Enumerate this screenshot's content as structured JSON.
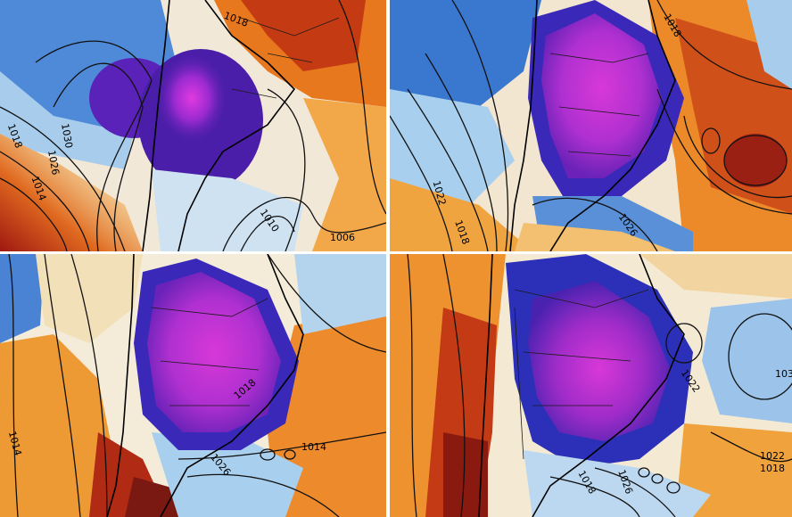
{
  "colors": {
    "cold_core": "#e03ae0",
    "cold": "#6a1fb0",
    "cool": "#2050c8",
    "mild": "#9cc8ec",
    "neutral": "#f4f1ea",
    "warm": "#f0a030",
    "hot": "#d85010",
    "very_hot": "#8a1a10"
  },
  "panels": [
    {
      "name": "panel-top-left",
      "isobar_labels": [
        "1018",
        "1030",
        "1026",
        "1014",
        "1018",
        "1010",
        "1006"
      ]
    },
    {
      "name": "panel-top-right",
      "isobar_labels": [
        "1022",
        "1018",
        "1026",
        "1018"
      ]
    },
    {
      "name": "panel-bottom-left",
      "isobar_labels": [
        "1014",
        "1014",
        "1026",
        "1018"
      ]
    },
    {
      "name": "panel-bottom-right",
      "isobar_labels": [
        "1022",
        "1026",
        "1018",
        "1022",
        "1018",
        "103"
      ]
    }
  ]
}
